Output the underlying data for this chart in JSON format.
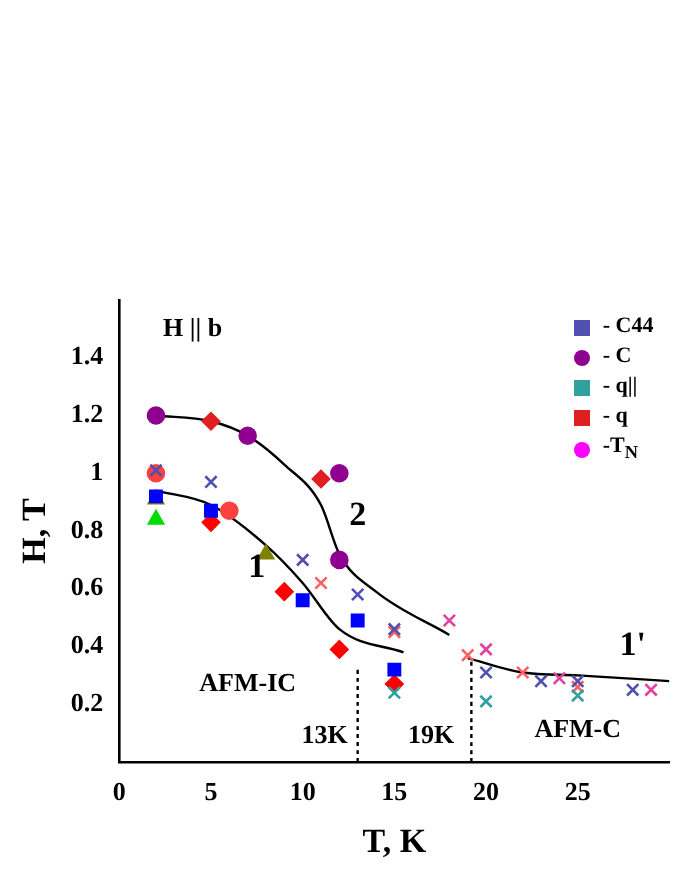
{
  "chart_data": {
    "type": "scatter",
    "xlabel": "T, K",
    "ylabel": "H, T",
    "xlim": [
      0,
      30
    ],
    "ylim": [
      0,
      1.6
    ],
    "xticks": [
      0,
      5,
      10,
      15,
      20,
      25
    ],
    "yticks": [
      0.2,
      0.4,
      0.6,
      0.8,
      1.0,
      1.2,
      1.4
    ],
    "grid": false,
    "legend": "top right",
    "series": [
      {
        "color": "#0000ff",
        "marker": "square",
        "x": [
          2,
          5,
          10,
          13,
          15
        ],
        "values": [
          0.92,
          0.87,
          0.56,
          0.49,
          0.32
        ]
      },
      {
        "name": "- C44",
        "color": "#5050b0",
        "marker": "cross",
        "x": [
          2,
          5,
          10,
          13,
          15,
          20,
          23,
          25,
          28
        ],
        "values": [
          1.01,
          0.97,
          0.7,
          0.58,
          0.46,
          0.31,
          0.28,
          0.28,
          0.25
        ]
      },
      {
        "color": "#ff4040",
        "marker": "circle",
        "x": [
          2,
          6
        ],
        "values": [
          1.0,
          0.87
        ]
      },
      {
        "color": "#e040a0",
        "marker": "cross",
        "x": [
          18,
          20,
          24,
          29
        ],
        "values": [
          0.49,
          0.39,
          0.29,
          0.25
        ]
      },
      {
        "name": "- C",
        "color": "#900090",
        "marker": "circle",
        "x": [
          2,
          7,
          12,
          12
        ],
        "values": [
          1.2,
          1.13,
          1.0,
          0.7
        ]
      },
      {
        "color": "#00dd00",
        "marker": "triangle",
        "x": [
          2
        ],
        "values": [
          0.84
        ]
      },
      {
        "color": "#808000",
        "marker": "triangle",
        "x": [
          2,
          8
        ],
        "values": [
          0.91,
          0.72
        ]
      },
      {
        "name": "- q||",
        "color": "#30a0a0",
        "marker": "cross",
        "x": [
          15,
          20,
          25
        ],
        "values": [
          0.24,
          0.21,
          0.23
        ]
      },
      {
        "color": "#ff0000",
        "marker": "diamond",
        "x": [
          5,
          9,
          12,
          15
        ],
        "values": [
          0.83,
          0.59,
          0.39,
          0.27
        ]
      },
      {
        "color": "#ff6060",
        "marker": "cross",
        "x": [
          11,
          15,
          19,
          22,
          25
        ],
        "values": [
          0.62,
          0.45,
          0.37,
          0.31,
          0.26
        ]
      },
      {
        "name": "- q",
        "color": "#e02020",
        "marker": "diamond",
        "x": [
          5,
          11
        ],
        "values": [
          1.18,
          0.98
        ]
      },
      {
        "name": "-T$_{N}$",
        "color": "#ff00ff",
        "marker": "star"
      },
      {
        "type": "line",
        "color": "#000000",
        "marker": "none",
        "x": [
          2,
          5,
          8,
          10,
          12,
          15.5
        ],
        "values": [
          0.94,
          0.89,
          0.75,
          0.62,
          0.46,
          0.38
        ]
      },
      {
        "type": "line",
        "color": "#000000",
        "marker": "none",
        "x": [
          2,
          5,
          7,
          9,
          11,
          12,
          14,
          18
        ],
        "values": [
          1.2,
          1.18,
          1.13,
          1.03,
          0.89,
          0.72,
          0.59,
          0.44
        ]
      },
      {
        "type": "line",
        "color": "#000000",
        "marker": "none",
        "x": [
          19,
          22,
          25,
          30
        ],
        "values": [
          0.36,
          0.31,
          0.3,
          0.28
        ]
      },
      {
        "type": "line",
        "color": "#000000",
        "marker": "none",
        "line_style": "dotted",
        "x": [
          13,
          13
        ],
        "values": [
          0,
          0.32
        ]
      },
      {
        "type": "line",
        "color": "#000000",
        "marker": "none",
        "line_style": "dotted",
        "x": [
          19.2,
          19.2
        ],
        "values": [
          0,
          0.36
        ]
      }
    ],
    "annotations": [
      "H || b",
      "1",
      "2",
      "1'",
      "AFM-IC",
      "AFM-C",
      "13K",
      "19K"
    ]
  }
}
